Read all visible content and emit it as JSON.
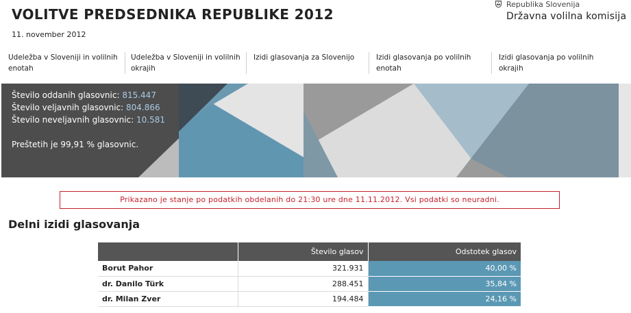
{
  "header": {
    "title": "VOLITVE PREDSEDNIKA REPUBLIKE 2012",
    "date": "11. november 2012"
  },
  "logo": {
    "icon": "slovenia-crest-icon",
    "line1": "Republika Slovenija",
    "line2": "Državna volilna komisija"
  },
  "nav": {
    "items": [
      {
        "label": "Udeležba v Sloveniji in volilnih enotah"
      },
      {
        "label": "Udeležba v Sloveniji in volilnih okrajih"
      },
      {
        "label": "Izidi glasovanja za Slovenijo"
      },
      {
        "label": "Izidi glasovanja po volilnih enotah"
      },
      {
        "label": "Izidi glasovanja po volilnih okrajih"
      }
    ]
  },
  "stats": {
    "cast_label": "Število oddanih glasovnic:",
    "cast_value": "815.447",
    "valid_label": "Število veljavnih glasovnic:",
    "valid_value": "804.866",
    "invalid_label": "Število neveljavnih glasovnic:",
    "invalid_value": "10.581",
    "counted": "Preštetih je 99,91 % glasovnic."
  },
  "notice": "Prikazano je stanje po podatkih obdelanih do 21:30 ure dne 11.11.2012. Vsi podatki so neuradni.",
  "section_title": "Delni izidi glasovanja",
  "results": {
    "headers": [
      "",
      "Število glasov",
      "Odstotek glasov"
    ],
    "rows": [
      {
        "name": "Borut Pahor",
        "votes": "321.931",
        "percent": "40,00 %"
      },
      {
        "name": "dr. Danilo Türk",
        "votes": "288.451",
        "percent": "35,84 %"
      },
      {
        "name": "dr. Milan Zver",
        "votes": "194.484",
        "percent": "24,16 %"
      }
    ]
  },
  "colors": {
    "accent_blue": "#5b98b4",
    "notice_red": "#c8202a",
    "dark_panel": "#4d4d4d",
    "header_gray": "#555555"
  }
}
